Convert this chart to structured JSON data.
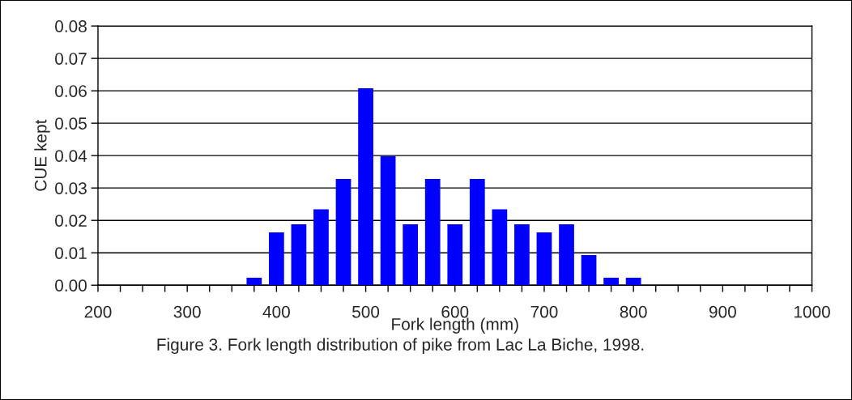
{
  "chart_data": {
    "type": "bar",
    "xlabel": "Fork length (mm)",
    "ylabel": "CUE kept",
    "annotations": [
      "Figure 3. Fork length distribution of pike from Lac La Biche, 1998."
    ],
    "x": [
      375,
      400,
      425,
      450,
      475,
      500,
      525,
      550,
      575,
      600,
      625,
      650,
      675,
      700,
      725,
      750,
      775,
      800
    ],
    "values": [
      0.0023,
      0.0163,
      0.0188,
      0.0234,
      0.0328,
      0.0608,
      0.0398,
      0.0188,
      0.0328,
      0.0188,
      0.0328,
      0.0234,
      0.0188,
      0.0163,
      0.0188,
      0.0093,
      0.0023,
      0.0023
    ],
    "color": "#0000ff",
    "xlim": [
      200,
      1000
    ],
    "xticks": [
      200,
      {
        "value": 225,
        "label": null
      },
      {
        "value": 250,
        "label": null
      },
      {
        "value": 275,
        "label": null
      },
      300,
      {
        "value": 325,
        "label": null
      },
      {
        "value": 350,
        "label": null
      },
      {
        "value": 375,
        "label": null
      },
      400,
      {
        "value": 425,
        "label": null
      },
      {
        "value": 450,
        "label": null
      },
      {
        "value": 475,
        "label": null
      },
      500,
      {
        "value": 525,
        "label": null
      },
      {
        "value": 550,
        "label": null
      },
      {
        "value": 575,
        "label": null
      },
      600,
      {
        "value": 625,
        "label": null
      },
      {
        "value": 650,
        "label": null
      },
      {
        "value": 675,
        "label": null
      },
      700,
      {
        "value": 725,
        "label": null
      },
      {
        "value": 750,
        "label": null
      },
      {
        "value": 775,
        "label": null
      },
      800,
      {
        "value": 825,
        "label": null
      },
      {
        "value": 850,
        "label": null
      },
      {
        "value": 875,
        "label": null
      },
      900,
      {
        "value": 925,
        "label": null
      },
      {
        "value": 950,
        "label": null
      },
      {
        "value": 975,
        "label": null
      },
      1000
    ],
    "ylim": [
      0,
      0.08
    ],
    "yticks": [
      {
        "value": 0,
        "label": "0.00"
      },
      {
        "value": 0.01,
        "label": "0.01"
      },
      {
        "value": 0.02,
        "label": "0.02"
      },
      {
        "value": 0.03,
        "label": "0.03"
      },
      {
        "value": 0.04,
        "label": "0.04"
      },
      {
        "value": 0.05,
        "label": "0.05"
      },
      {
        "value": 0.06,
        "label": "0.06"
      },
      {
        "value": 0.07,
        "label": "0.07"
      },
      {
        "value": 0.08,
        "label": "0.08"
      }
    ],
    "grid": "y",
    "legend": false
  }
}
